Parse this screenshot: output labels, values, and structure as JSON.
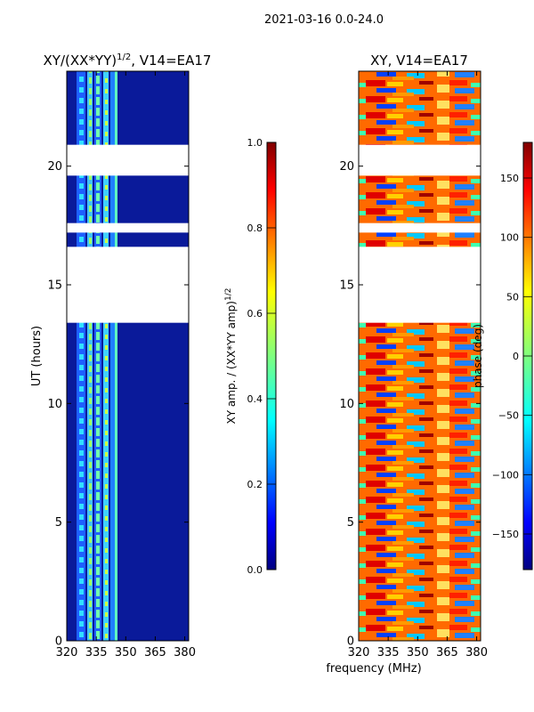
{
  "figure": {
    "suptitle": "2021-03-16 0.0-24.0",
    "shared_xlabel": "frequency (MHz)"
  },
  "chart_data": [
    {
      "type": "heatmap",
      "title": "XY/(XX*YY)^{1/2}, V14=EA17",
      "title_main": "XY/(XX*YY)",
      "title_sup": "1/2",
      "title_rest": ", V14=EA17",
      "xlabel": "",
      "ylabel": "UT (hours)",
      "xlim": [
        320,
        382
      ],
      "ylim": [
        0,
        24
      ],
      "xticks": [
        320,
        335,
        350,
        365,
        380
      ],
      "yticks": [
        0,
        5,
        10,
        15,
        20
      ],
      "colorbar": {
        "label": "XY amp. / (XX*YY amp)^{1/2}",
        "label_main": "XY amp. / (XX*YY amp)",
        "label_sup": "1/2",
        "range": [
          0.0,
          1.0
        ],
        "ticks": [
          0.0,
          0.2,
          0.4,
          0.6,
          0.8,
          1.0
        ],
        "tick_labels": [
          "0.0",
          "0.2",
          "0.4",
          "0.6",
          "0.8",
          "1.0"
        ],
        "colormap": "jet"
      },
      "data_gaps_hours": [
        [
          13.4,
          16.6
        ],
        [
          17.2,
          17.6
        ],
        [
          19.6,
          20.9
        ]
      ]
    },
    {
      "type": "heatmap",
      "title": "XY, V14=EA17",
      "xlabel": "frequency (MHz)",
      "ylabel": "",
      "xlim": [
        320,
        382
      ],
      "ylim": [
        0,
        24
      ],
      "xticks": [
        320,
        335,
        350,
        365,
        380
      ],
      "yticks": [
        0,
        5,
        10,
        15,
        20
      ],
      "colorbar": {
        "label": "phase (deg)",
        "range": [
          -180,
          180
        ],
        "ticks": [
          -150,
          -100,
          -50,
          0,
          50,
          100,
          150
        ],
        "tick_labels": [
          "−150",
          "−100",
          "−50",
          "0",
          "50",
          "100",
          "150"
        ],
        "colormap": "jet"
      },
      "data_gaps_hours": [
        [
          13.4,
          16.6
        ],
        [
          17.2,
          17.6
        ],
        [
          19.6,
          20.9
        ]
      ]
    }
  ],
  "colors": {
    "jet_stops": [
      "#000080",
      "#0000ff",
      "#00ffff",
      "#ffff00",
      "#ff0000",
      "#800000"
    ],
    "gap": "#ffffff",
    "frame": "#000000"
  }
}
